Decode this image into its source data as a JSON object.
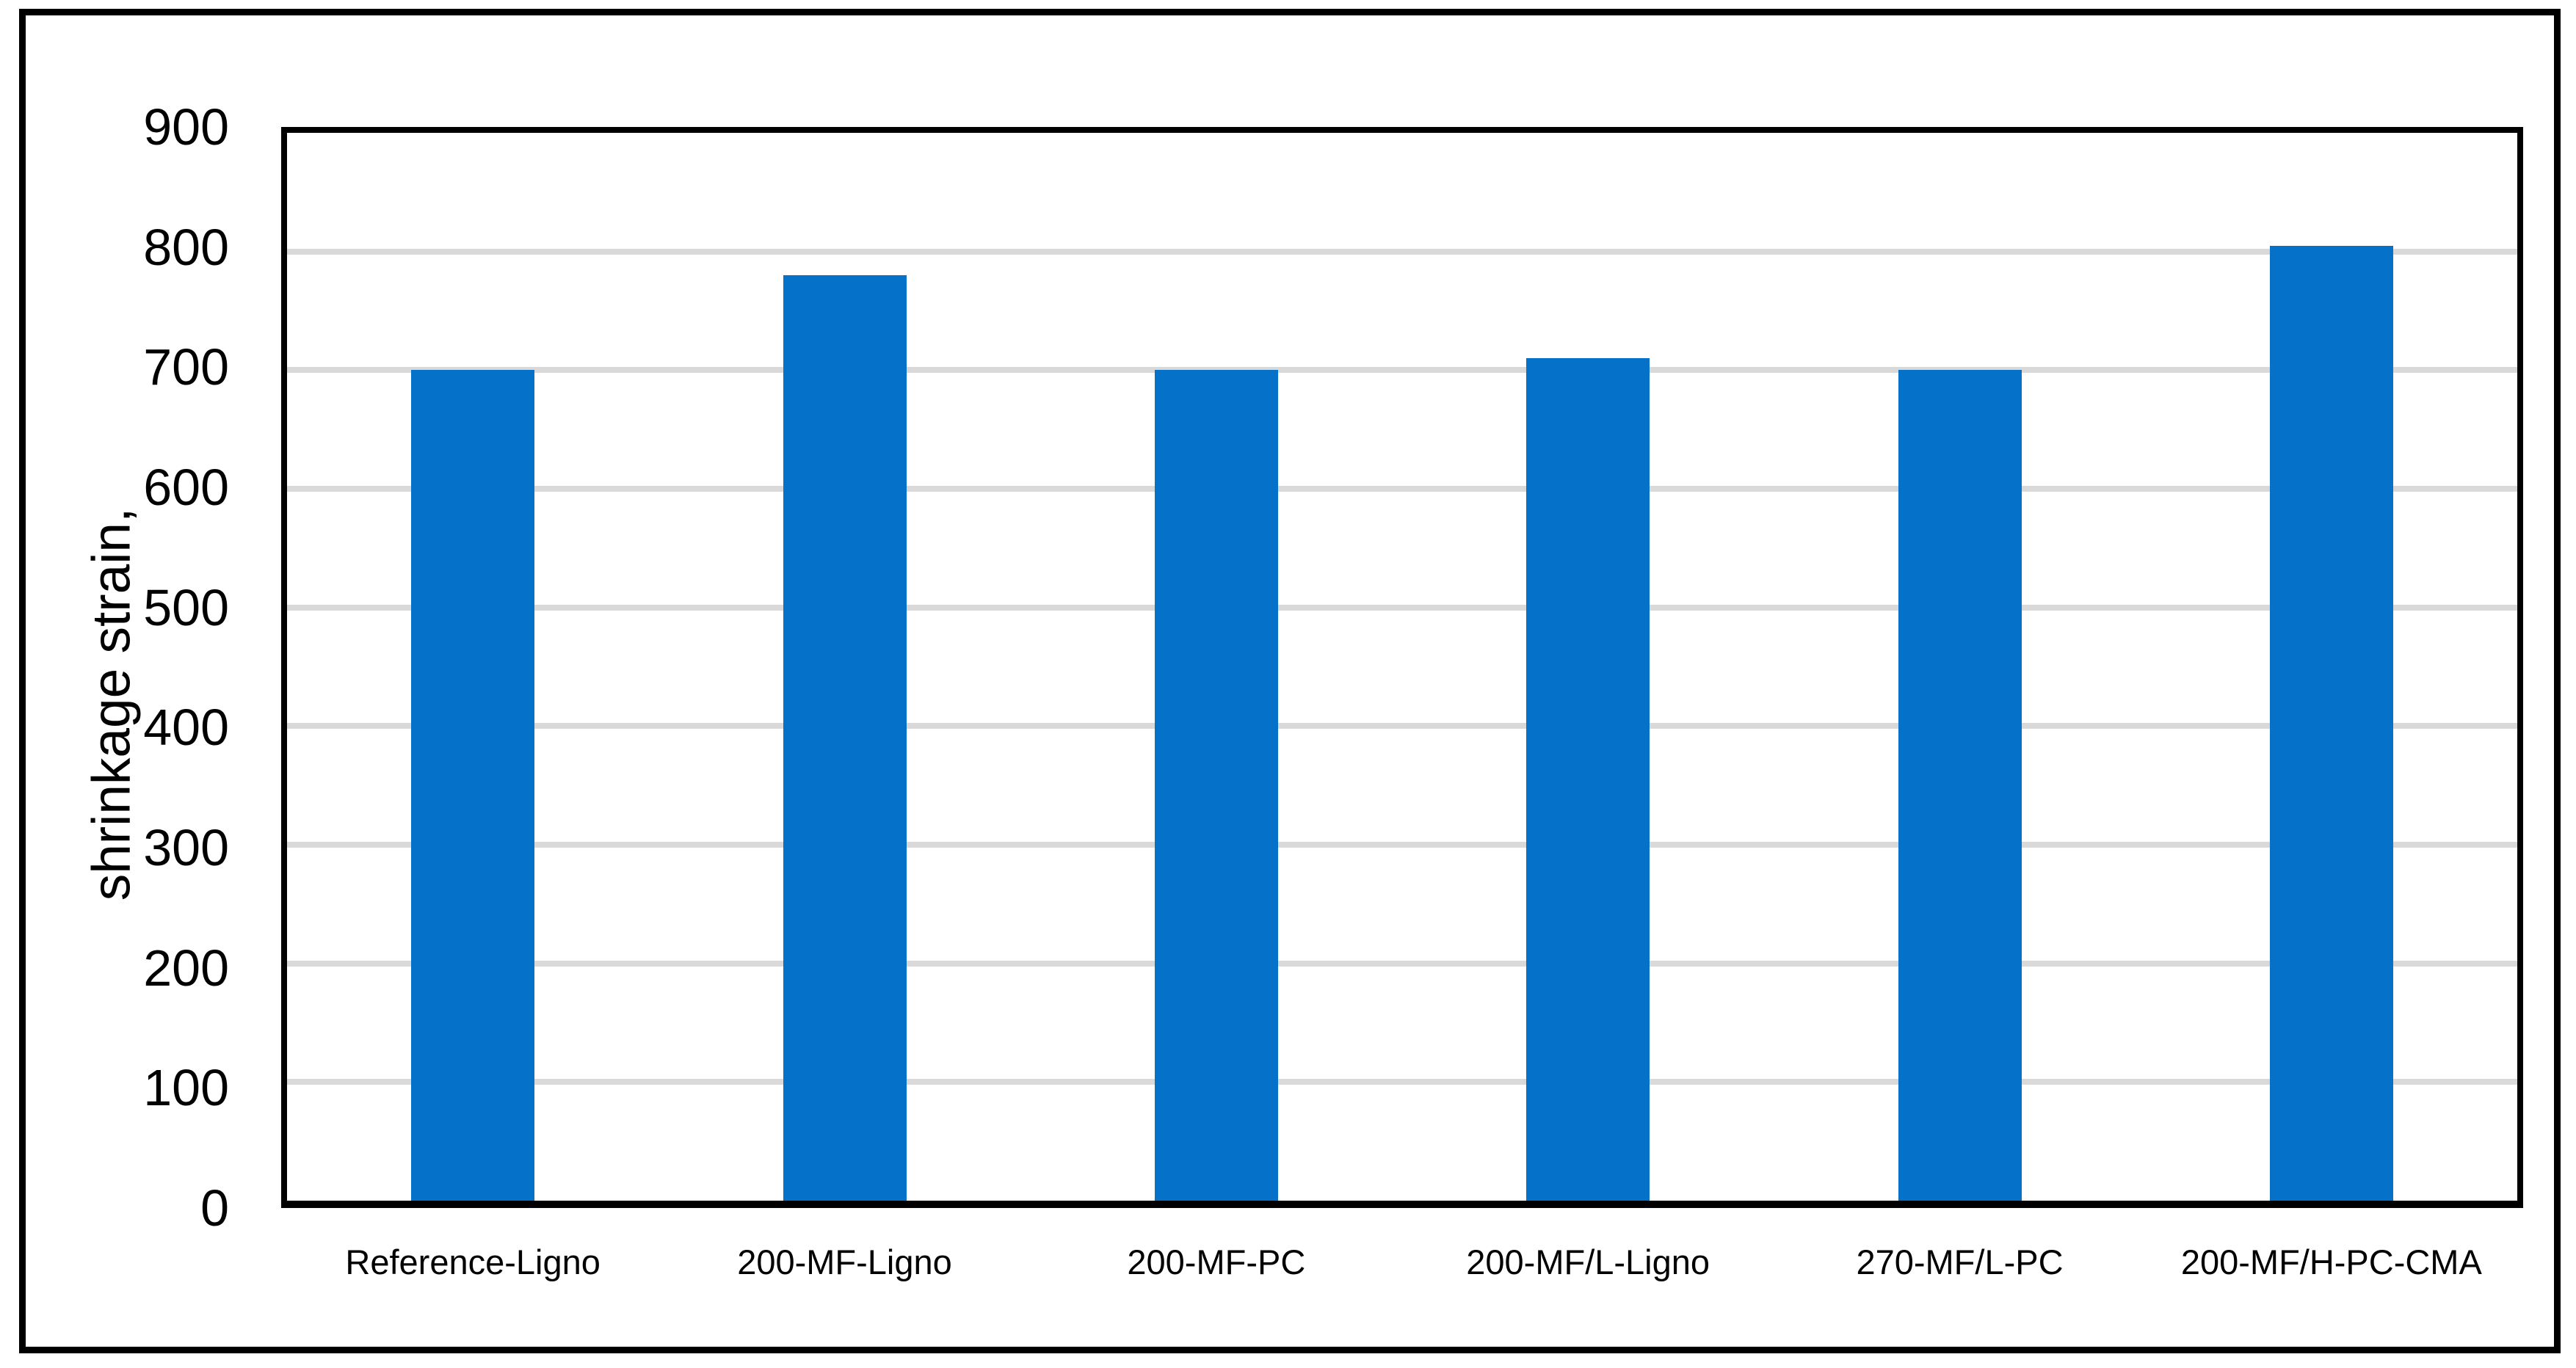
{
  "figure": {
    "background": "#FFFFFF",
    "border_color": "#000000"
  },
  "chart_data": {
    "type": "bar",
    "title": "",
    "categories": [
      "Reference-Ligno",
      "200-MF-Ligno",
      "200-MF-PC",
      "200-MF/L-Ligno",
      "270-MF/L-PC",
      "200-MF/H-PC-CMA"
    ],
    "values": [
      700,
      780,
      700,
      710,
      700,
      805
    ],
    "xlabel": "",
    "ylabel": "shrinkage strain,",
    "ylim": [
      0,
      900
    ],
    "yticks": [
      0,
      100,
      200,
      300,
      400,
      500,
      600,
      700,
      800,
      900
    ],
    "gridlines_at": [
      100,
      200,
      300,
      400,
      500,
      600,
      700,
      800
    ],
    "grid": true,
    "legend": false,
    "legend_position": "none",
    "bar_color": "#0571C9",
    "gridline_color": "#D9D9D9",
    "axis_color": "#000000",
    "text_color": "#000000"
  }
}
